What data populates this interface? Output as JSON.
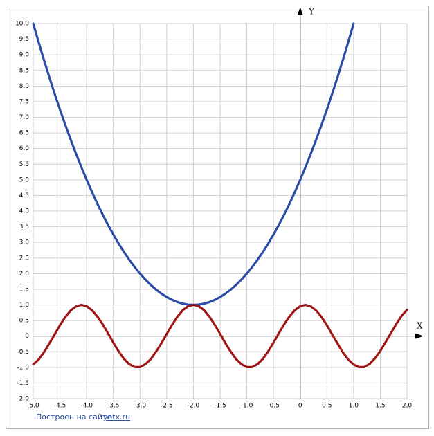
{
  "chart_data": {
    "type": "line",
    "x_label": "X",
    "y_label": "Y",
    "credit_text": "Построен на сайте",
    "credit_link": "yotx.ru",
    "xlim": [
      -5,
      2
    ],
    "ylim": [
      -2,
      10
    ],
    "grid": true,
    "xticks": [
      {
        "value": -5,
        "label": "-5.0"
      },
      {
        "value": -4.5,
        "label": "-4.5"
      },
      {
        "value": -4,
        "label": "-4.0"
      },
      {
        "value": -3.5,
        "label": "-3.5"
      },
      {
        "value": -3,
        "label": "-3.0"
      },
      {
        "value": -2.5,
        "label": "-2.5"
      },
      {
        "value": -2,
        "label": "-2.0"
      },
      {
        "value": -1.5,
        "label": "-1.5"
      },
      {
        "value": -1,
        "label": "-1.0"
      },
      {
        "value": -0.5,
        "label": "-0.5"
      },
      0,
      0.5,
      {
        "value": 1,
        "label": "1.0"
      },
      1.5,
      {
        "value": 2,
        "label": "2.0"
      }
    ],
    "yticks": [
      {
        "value": -2,
        "label": "-2.0"
      },
      -1.5,
      {
        "value": -1,
        "label": "-1.0"
      },
      -0.5,
      0,
      0.5,
      {
        "value": 1,
        "label": "1.0"
      },
      1.5,
      {
        "value": 2,
        "label": "2.0"
      },
      2.5,
      {
        "value": 3,
        "label": "3.0"
      },
      3.5,
      {
        "value": 4,
        "label": "4.0"
      },
      4.5,
      {
        "value": 5,
        "label": "5.0"
      },
      5.5,
      {
        "value": 6,
        "label": "6.0"
      },
      6.5,
      {
        "value": 7,
        "label": "7.0"
      },
      7.5,
      {
        "value": 8,
        "label": "8.0"
      },
      8.5,
      {
        "value": 9,
        "label": "9.0"
      },
      9.5,
      {
        "value": 10,
        "label": "10.0"
      }
    ],
    "series": [
      {
        "color": "#2b4ba6",
        "x": [
          -5,
          -4.9,
          -4.8,
          -4.7,
          -4.6,
          -4.5,
          -4.4,
          -4.3,
          -4.2,
          -4.1,
          -4,
          -3.9,
          -3.8,
          -3.7,
          -3.6,
          -3.5,
          -3.4,
          -3.3,
          -3.2,
          -3.1,
          -3,
          -2.9,
          -2.8,
          -2.7,
          -2.6,
          -2.5,
          -2.4,
          -2.3,
          -2.2,
          -2.1,
          -2,
          -1.9,
          -1.8,
          -1.7,
          -1.6,
          -1.5,
          -1.4,
          -1.3,
          -1.2,
          -1.1,
          -1,
          -0.9,
          -0.8,
          -0.7,
          -0.6,
          -0.5,
          -0.4,
          -0.3,
          -0.2,
          -0.1,
          0,
          0.1,
          0.2,
          0.3,
          0.4,
          0.5,
          0.6,
          0.7,
          0.8,
          0.9,
          1
        ],
        "values": [
          10,
          9.41,
          8.84,
          8.29,
          7.76,
          7.25,
          6.76,
          6.29,
          5.84,
          5.41,
          5,
          4.61,
          4.24,
          3.89,
          3.56,
          3.25,
          2.96,
          2.69,
          2.44,
          2.21,
          2,
          1.81,
          1.64,
          1.49,
          1.36,
          1.25,
          1.16,
          1.09,
          1.04,
          1.01,
          1,
          1.01,
          1.04,
          1.09,
          1.16,
          1.25,
          1.36,
          1.49,
          1.64,
          1.81,
          2,
          2.21,
          2.44,
          2.69,
          2.96,
          3.25,
          3.56,
          3.89,
          4.24,
          4.61,
          5,
          5.41,
          5.84,
          6.29,
          6.76,
          7.25,
          7.76,
          8.29,
          8.84,
          9.41,
          10
        ]
      },
      {
        "color": "#a01414",
        "x": [
          -5,
          -4.9,
          -4.8,
          -4.7,
          -4.6,
          -4.5,
          -4.4,
          -4.3,
          -4.2,
          -4.1,
          -4,
          -3.9,
          -3.8,
          -3.7,
          -3.6,
          -3.5,
          -3.4,
          -3.3,
          -3.2,
          -3.1,
          -3,
          -2.9,
          -2.8,
          -2.7,
          -2.6,
          -2.5,
          -2.4,
          -2.3,
          -2.2,
          -2.1,
          -2,
          -1.9,
          -1.8,
          -1.7,
          -1.6,
          -1.5,
          -1.4,
          -1.3,
          -1.2,
          -1.1,
          -1,
          -0.9,
          -0.8,
          -0.7,
          -0.6,
          -0.5,
          -0.4,
          -0.3,
          -0.2,
          -0.1,
          0,
          0.1,
          0.2,
          0.3,
          0.4,
          0.5,
          0.6,
          0.7,
          0.8,
          0.9,
          1,
          1.1,
          1.2,
          1.3,
          1.4,
          1.5,
          1.6,
          1.7,
          1.8,
          1.9,
          2
        ],
        "values": [
          -0.91,
          -0.75,
          -0.52,
          -0.24,
          0.05,
          0.35,
          0.61,
          0.82,
          0.95,
          1.0,
          0.96,
          0.83,
          0.63,
          0.38,
          0.09,
          -0.21,
          -0.49,
          -0.73,
          -0.9,
          -0.99,
          -0.99,
          -0.9,
          -0.74,
          -0.5,
          -0.23,
          0.07,
          0.36,
          0.62,
          0.83,
          0.96,
          1.0,
          0.96,
          0.83,
          0.62,
          0.36,
          0.07,
          -0.23,
          -0.5,
          -0.74,
          -0.9,
          -0.99,
          -0.99,
          -0.9,
          -0.73,
          -0.49,
          -0.21,
          0.09,
          0.38,
          0.63,
          0.83,
          0.96,
          1.0,
          0.95,
          0.82,
          0.61,
          0.35,
          0.05,
          -0.24,
          -0.52,
          -0.75,
          -0.91,
          -0.99,
          -0.99,
          -0.89,
          -0.71,
          -0.48,
          -0.19,
          0.1,
          0.39,
          0.65,
          0.84
        ]
      }
    ]
  }
}
